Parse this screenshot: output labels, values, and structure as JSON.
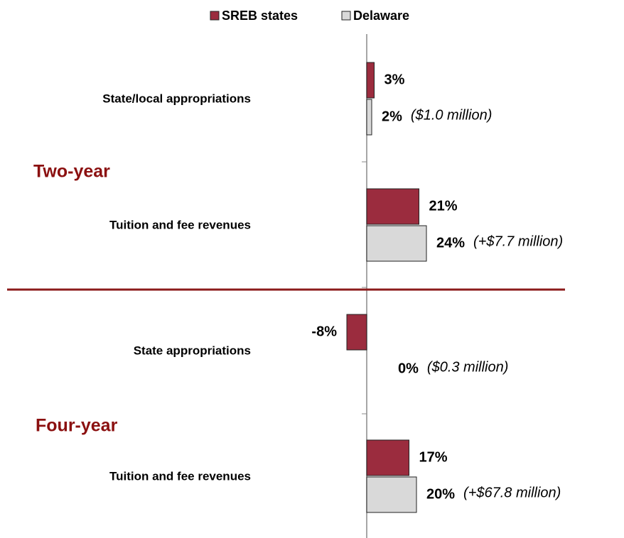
{
  "chart_data": {
    "type": "bar",
    "orientation": "horizontal",
    "groups": [
      "Two-year",
      "Four-year"
    ],
    "categories": [
      "State/local appropriations",
      "Tuition and fee revenues",
      "State appropriations",
      "Tuition and fee revenues"
    ],
    "series": [
      {
        "name": "SREB states",
        "color": "#9b2c3e",
        "values": [
          3,
          21,
          -8,
          17
        ],
        "value_labels": [
          "3%",
          "21%",
          "-8%",
          "17%"
        ]
      },
      {
        "name": "Delaware",
        "color": "#d9d9d9",
        "values": [
          2,
          24,
          0,
          20
        ],
        "value_labels": [
          "2%",
          "24%",
          "0%",
          "20%"
        ]
      }
    ],
    "annotations": [
      "($1.0 million)",
      "(+$7.7 million)",
      "($0.3 million)",
      "(+$67.8 million)"
    ],
    "xlim": [
      -10,
      30
    ]
  }
}
